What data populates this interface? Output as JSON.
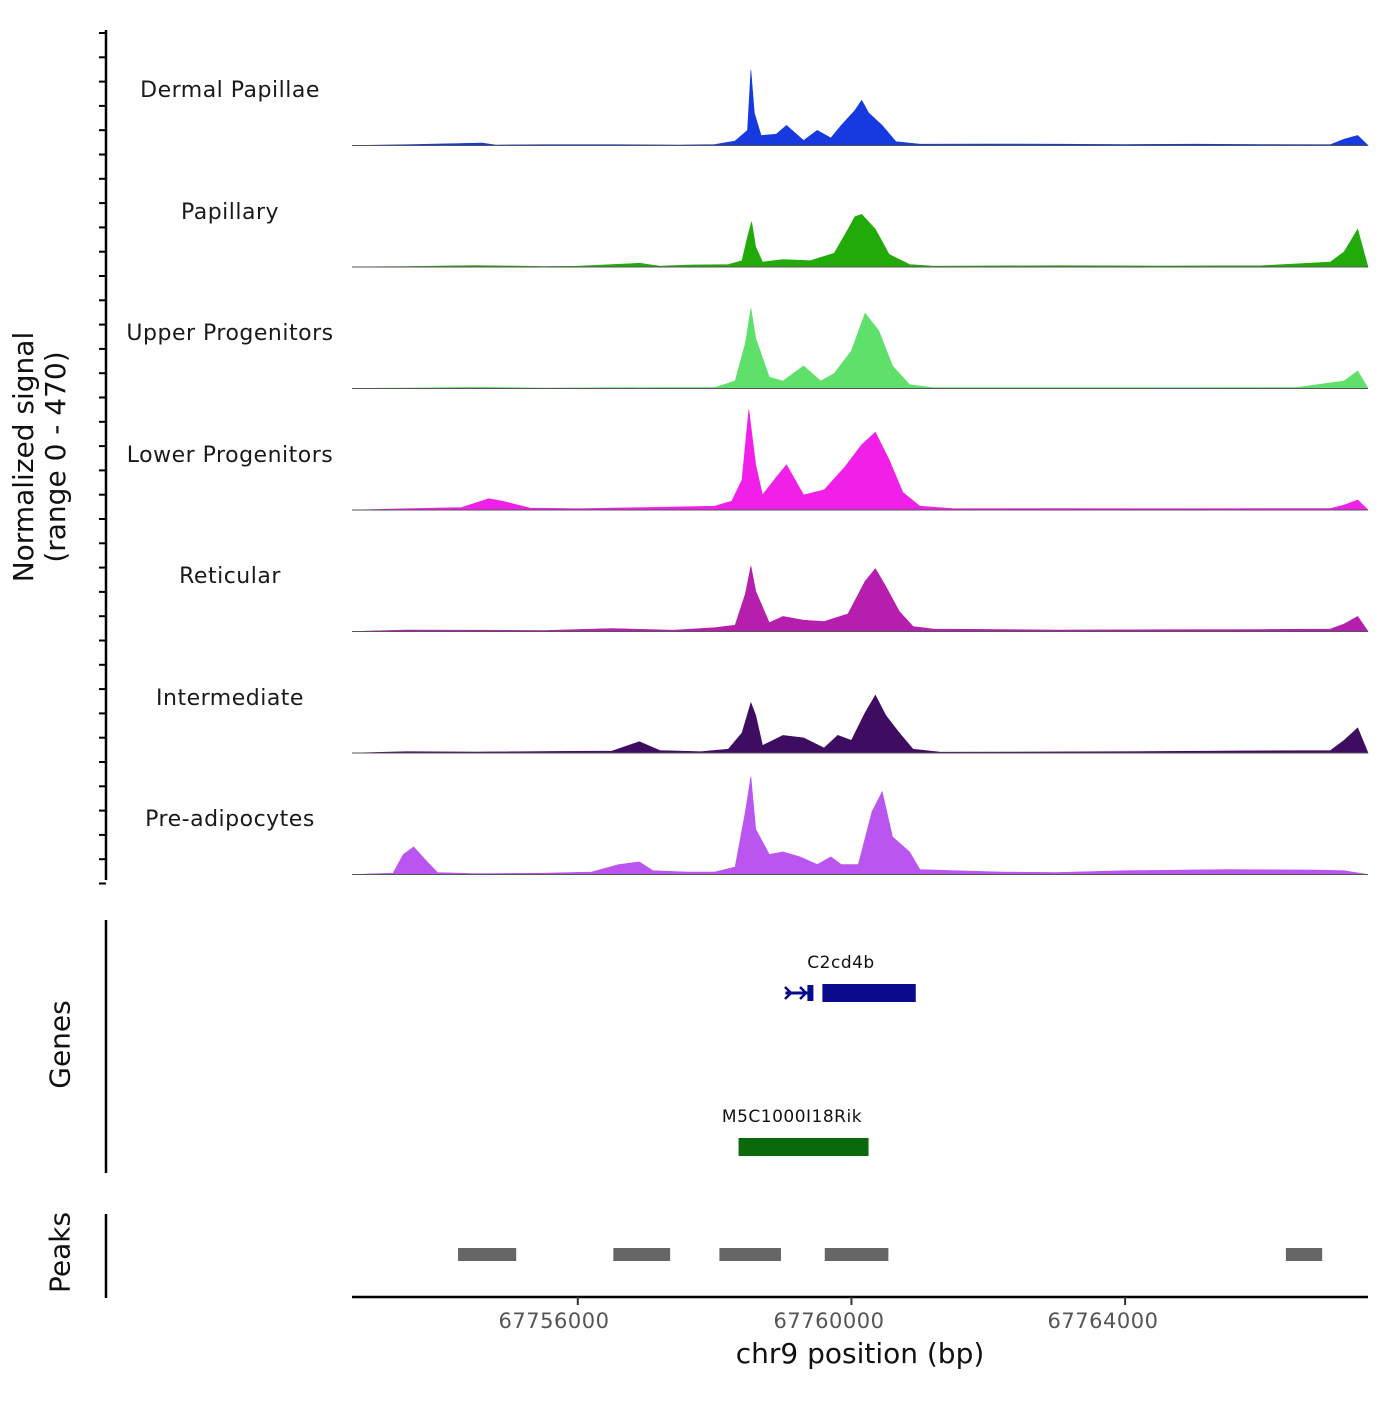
{
  "chart_data": {
    "type": "area",
    "title": "",
    "ylabel": "Normalized signal",
    "ylabel_range": "(range 0 - 470)",
    "ylim": [
      0,
      470
    ],
    "xlabel": "chr9 position (bp)",
    "xlim": [
      67752700,
      67767550
    ],
    "xticks": [
      67756000,
      67760000,
      67764000
    ],
    "xtick_labels": [
      "67756000",
      "67760000",
      "67764000"
    ],
    "tracks": [
      {
        "name": "Dermal Papillae",
        "color": "#1639E0",
        "points": [
          [
            67752700,
            0
          ],
          [
            67753500,
            3
          ],
          [
            67754600,
            10
          ],
          [
            67754800,
            2
          ],
          [
            67755500,
            3
          ],
          [
            67756600,
            3
          ],
          [
            67757500,
            2
          ],
          [
            67758000,
            4
          ],
          [
            67758300,
            18
          ],
          [
            67758480,
            60
          ],
          [
            67758530,
            300
          ],
          [
            67758580,
            130
          ],
          [
            67758680,
            40
          ],
          [
            67758900,
            45
          ],
          [
            67759050,
            80
          ],
          [
            67759300,
            20
          ],
          [
            67759500,
            60
          ],
          [
            67759700,
            30
          ],
          [
            67759850,
            80
          ],
          [
            67760050,
            140
          ],
          [
            67760150,
            180
          ],
          [
            67760250,
            130
          ],
          [
            67760450,
            80
          ],
          [
            67760650,
            15
          ],
          [
            67761000,
            5
          ],
          [
            67762000,
            6
          ],
          [
            67763000,
            5
          ],
          [
            67764000,
            4
          ],
          [
            67765000,
            5
          ],
          [
            67766000,
            4
          ],
          [
            67767000,
            3
          ],
          [
            67767200,
            25
          ],
          [
            67767400,
            40
          ],
          [
            67767550,
            0
          ]
        ]
      },
      {
        "name": "Papillary",
        "color": "#22AA0A",
        "points": [
          [
            67752700,
            0
          ],
          [
            67753500,
            2
          ],
          [
            67754500,
            6
          ],
          [
            67755500,
            2
          ],
          [
            67756000,
            3
          ],
          [
            67756900,
            15
          ],
          [
            67757200,
            3
          ],
          [
            67757600,
            8
          ],
          [
            67758200,
            10
          ],
          [
            67758400,
            25
          ],
          [
            67758480,
            120
          ],
          [
            67758540,
            180
          ],
          [
            67758600,
            80
          ],
          [
            67758700,
            20
          ],
          [
            67759000,
            30
          ],
          [
            67759400,
            25
          ],
          [
            67759750,
            55
          ],
          [
            67759950,
            150
          ],
          [
            67760050,
            200
          ],
          [
            67760150,
            210
          ],
          [
            67760350,
            150
          ],
          [
            67760550,
            50
          ],
          [
            67760850,
            10
          ],
          [
            67761200,
            3
          ],
          [
            67763000,
            5
          ],
          [
            67764500,
            4
          ],
          [
            67766000,
            5
          ],
          [
            67767000,
            20
          ],
          [
            67767200,
            60
          ],
          [
            67767400,
            150
          ],
          [
            67767550,
            0
          ]
        ]
      },
      {
        "name": "Upper Progenitors",
        "color": "#5EE06A",
        "points": [
          [
            67752700,
            0
          ],
          [
            67753500,
            2
          ],
          [
            67754500,
            5
          ],
          [
            67755500,
            2
          ],
          [
            67756500,
            3
          ],
          [
            67757300,
            4
          ],
          [
            67758000,
            4
          ],
          [
            67758300,
            30
          ],
          [
            67758450,
            180
          ],
          [
            67758530,
            320
          ],
          [
            67758600,
            200
          ],
          [
            67758800,
            45
          ],
          [
            67759000,
            30
          ],
          [
            67759300,
            90
          ],
          [
            67759550,
            30
          ],
          [
            67759750,
            60
          ],
          [
            67760000,
            150
          ],
          [
            67760200,
            300
          ],
          [
            67760400,
            230
          ],
          [
            67760600,
            90
          ],
          [
            67760850,
            15
          ],
          [
            67761200,
            3
          ],
          [
            67764500,
            3
          ],
          [
            67766500,
            4
          ],
          [
            67767200,
            30
          ],
          [
            67767400,
            70
          ],
          [
            67767550,
            0
          ]
        ]
      },
      {
        "name": "Lower Progenitors",
        "color": "#F020E8",
        "points": [
          [
            67752700,
            0
          ],
          [
            67753500,
            5
          ],
          [
            67754300,
            10
          ],
          [
            67754700,
            45
          ],
          [
            67754900,
            35
          ],
          [
            67755300,
            8
          ],
          [
            67756000,
            5
          ],
          [
            67757000,
            10
          ],
          [
            67758000,
            15
          ],
          [
            67758250,
            35
          ],
          [
            67758400,
            120
          ],
          [
            67758500,
            400
          ],
          [
            67758600,
            180
          ],
          [
            67758700,
            60
          ],
          [
            67758900,
            130
          ],
          [
            67759050,
            180
          ],
          [
            67759300,
            60
          ],
          [
            67759600,
            80
          ],
          [
            67759900,
            170
          ],
          [
            67760150,
            260
          ],
          [
            67760350,
            310
          ],
          [
            67760550,
            200
          ],
          [
            67760750,
            70
          ],
          [
            67761000,
            15
          ],
          [
            67761500,
            5
          ],
          [
            67763000,
            6
          ],
          [
            67764500,
            5
          ],
          [
            67766000,
            6
          ],
          [
            67767000,
            6
          ],
          [
            67767200,
            20
          ],
          [
            67767400,
            40
          ],
          [
            67767550,
            0
          ]
        ]
      },
      {
        "name": "Reticular",
        "color": "#B61EAE",
        "points": [
          [
            67752700,
            0
          ],
          [
            67753500,
            6
          ],
          [
            67754500,
            5
          ],
          [
            67755500,
            4
          ],
          [
            67756500,
            12
          ],
          [
            67757400,
            5
          ],
          [
            67758000,
            15
          ],
          [
            67758300,
            25
          ],
          [
            67758450,
            150
          ],
          [
            67758530,
            260
          ],
          [
            67758600,
            160
          ],
          [
            67758800,
            35
          ],
          [
            67759000,
            60
          ],
          [
            67759300,
            45
          ],
          [
            67759600,
            40
          ],
          [
            67759950,
            70
          ],
          [
            67760200,
            200
          ],
          [
            67760350,
            250
          ],
          [
            67760500,
            180
          ],
          [
            67760700,
            80
          ],
          [
            67760900,
            20
          ],
          [
            67761200,
            10
          ],
          [
            67763000,
            6
          ],
          [
            67764500,
            7
          ],
          [
            67766000,
            8
          ],
          [
            67767000,
            10
          ],
          [
            67767200,
            30
          ],
          [
            67767400,
            60
          ],
          [
            67767550,
            0
          ]
        ]
      },
      {
        "name": "Intermediate",
        "color": "#3E0C60",
        "points": [
          [
            67752700,
            0
          ],
          [
            67753500,
            5
          ],
          [
            67754500,
            4
          ],
          [
            67756500,
            8
          ],
          [
            67756900,
            45
          ],
          [
            67757200,
            10
          ],
          [
            67757800,
            5
          ],
          [
            67758200,
            15
          ],
          [
            67758400,
            80
          ],
          [
            67758530,
            200
          ],
          [
            67758600,
            150
          ],
          [
            67758700,
            30
          ],
          [
            67759000,
            70
          ],
          [
            67759300,
            60
          ],
          [
            67759600,
            20
          ],
          [
            67759800,
            70
          ],
          [
            67760000,
            50
          ],
          [
            67760200,
            160
          ],
          [
            67760350,
            230
          ],
          [
            67760500,
            150
          ],
          [
            67760700,
            80
          ],
          [
            67760900,
            15
          ],
          [
            67761300,
            3
          ],
          [
            67764000,
            5
          ],
          [
            67765500,
            8
          ],
          [
            67767000,
            10
          ],
          [
            67767200,
            50
          ],
          [
            67767400,
            100
          ],
          [
            67767550,
            0
          ]
        ]
      },
      {
        "name": "Pre-adipocytes",
        "color": "#BB55F0",
        "points": [
          [
            67752700,
            0
          ],
          [
            67753300,
            5
          ],
          [
            67753450,
            80
          ],
          [
            67753600,
            110
          ],
          [
            67753800,
            50
          ],
          [
            67753950,
            8
          ],
          [
            67754500,
            3
          ],
          [
            67755500,
            5
          ],
          [
            67756200,
            10
          ],
          [
            67756600,
            40
          ],
          [
            67756900,
            50
          ],
          [
            67757100,
            15
          ],
          [
            67757600,
            10
          ],
          [
            67758000,
            10
          ],
          [
            67758300,
            30
          ],
          [
            67758450,
            250
          ],
          [
            67758530,
            390
          ],
          [
            67758600,
            180
          ],
          [
            67758800,
            80
          ],
          [
            67759000,
            90
          ],
          [
            67759250,
            70
          ],
          [
            67759500,
            40
          ],
          [
            67759700,
            70
          ],
          [
            67759850,
            40
          ],
          [
            67760100,
            40
          ],
          [
            67760300,
            250
          ],
          [
            67760450,
            330
          ],
          [
            67760600,
            150
          ],
          [
            67760850,
            90
          ],
          [
            67761000,
            20
          ],
          [
            67761500,
            15
          ],
          [
            67762200,
            10
          ],
          [
            67763000,
            8
          ],
          [
            67764000,
            15
          ],
          [
            67765500,
            20
          ],
          [
            67766800,
            18
          ],
          [
            67767200,
            15
          ],
          [
            67767550,
            0
          ]
        ]
      }
    ],
    "genes_label": "Genes",
    "genes": [
      {
        "name": "C2cd4b",
        "start": 67759400,
        "end": 67760940,
        "color": "#0A0A8C"
      },
      {
        "name": "M5C1000I18Rik",
        "start": 67758350,
        "end": 67760250,
        "color": "#0A6A0A"
      }
    ],
    "peaks_label": "Peaks",
    "peaks": [
      [
        67754250,
        67755100
      ],
      [
        67756520,
        67757350
      ],
      [
        67758070,
        67758970
      ],
      [
        67759610,
        67760540
      ],
      [
        67766350,
        67766880
      ]
    ]
  }
}
